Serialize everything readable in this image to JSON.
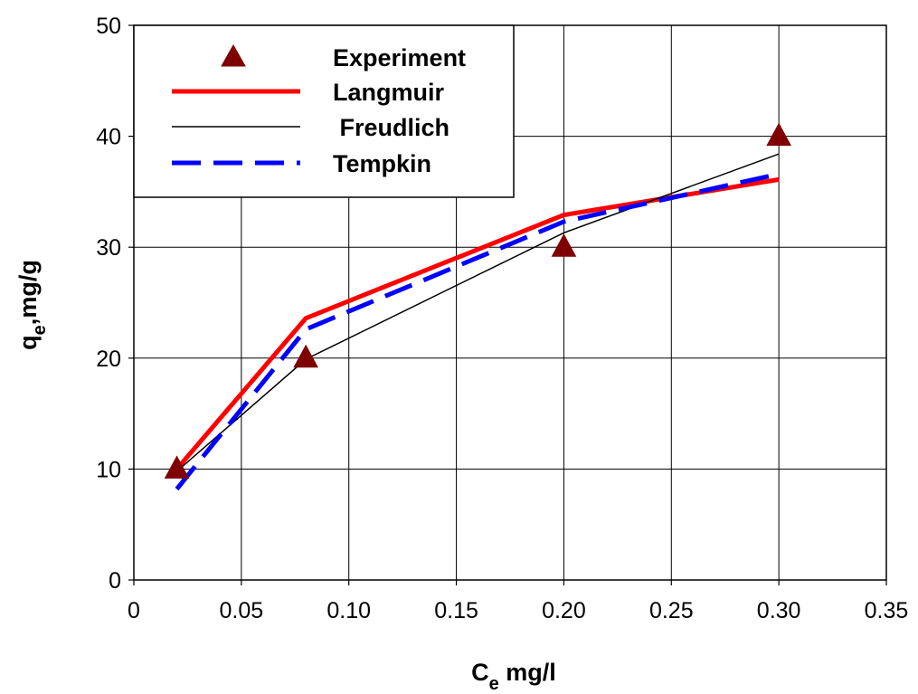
{
  "chart_data": {
    "type": "line",
    "title": "",
    "xlabel": {
      "main": "C",
      "sub": "e",
      "rest": " mg/l"
    },
    "ylabel": {
      "main": "q",
      "sub": "e",
      "rest": ",mg/g"
    },
    "xlim": [
      0,
      0.35
    ],
    "ylim": [
      0,
      50
    ],
    "xticks": [
      0,
      0.05,
      0.1,
      0.15,
      0.2,
      0.25,
      0.3,
      0.35
    ],
    "xtick_labels": [
      "0",
      "0.05",
      "0.10",
      "0.15",
      "0.20",
      "0.25",
      "0.30",
      "0.35"
    ],
    "yticks": [
      0,
      10,
      20,
      30,
      40,
      50
    ],
    "ytick_labels": [
      "0",
      "10",
      "20",
      "30",
      "40",
      "50"
    ],
    "grid": true,
    "legend_position": "top-left",
    "series": [
      {
        "name": "Experiment",
        "kind": "marker",
        "marker": "triangle",
        "color": "#7f0000",
        "x": [
          0.02,
          0.08,
          0.2,
          0.3
        ],
        "y": [
          10,
          20,
          30,
          40
        ]
      },
      {
        "name": "Langmuir",
        "kind": "line",
        "style": "solid-thick",
        "color": "#ff0000",
        "x": [
          0.02,
          0.08,
          0.2,
          0.3
        ],
        "y": [
          10,
          23.6,
          32.9,
          36.1
        ]
      },
      {
        "name": " Freudlich",
        "kind": "line",
        "style": "solid-thin",
        "color": "#000000",
        "x": [
          0.02,
          0.08,
          0.2,
          0.3
        ],
        "y": [
          9.8,
          19.9,
          31.3,
          38.4
        ]
      },
      {
        "name": "Tempkin",
        "kind": "line",
        "style": "dashed-thick",
        "color": "#0000ff",
        "x": [
          0.02,
          0.08,
          0.2,
          0.3
        ],
        "y": [
          8.2,
          22.6,
          32.3,
          36.6
        ]
      }
    ]
  }
}
